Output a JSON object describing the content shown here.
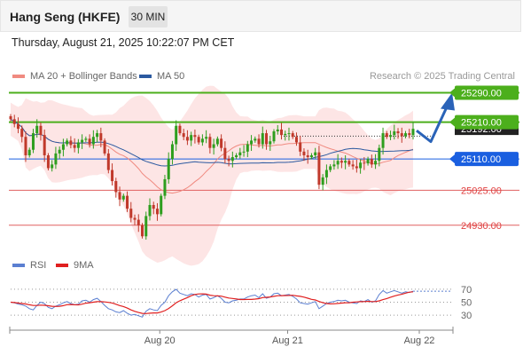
{
  "header": {
    "title": "Hang Seng (HKFE)",
    "timeframe": "30 MIN",
    "datetime": "Thursday, August 21, 2025 10:22:07 PM CET"
  },
  "legend": {
    "items": [
      {
        "label": "MA 20 + Bollinger Bands",
        "color": "#f08a80"
      },
      {
        "label": "MA 50",
        "color": "#2c5aa0"
      }
    ],
    "copyright": "Research © 2025 Trading Central"
  },
  "rsi_legend": {
    "items": [
      {
        "label": "RSI",
        "color": "#5b7fd1"
      },
      {
        "label": "9MA",
        "color": "#e02020"
      }
    ]
  },
  "chart_data": {
    "type": "candlestick",
    "price_range": [
      24850,
      25320
    ],
    "levels": [
      {
        "value": 25290,
        "label": "25290.00",
        "color": "#4caf1c",
        "kind": "resistance"
      },
      {
        "value": 25210,
        "label": "25210.00",
        "color": "#4caf1c",
        "kind": "resistance"
      },
      {
        "value": 25110,
        "label": "25110.00",
        "color": "#1a5fe0",
        "kind": "pivot"
      },
      {
        "value": 25025,
        "label": "25025.00",
        "color": "#e06060",
        "kind": "support"
      },
      {
        "value": 24930,
        "label": "24930.00",
        "color": "#e06060",
        "kind": "support"
      }
    ],
    "current_price": {
      "label": "25192.00"
    },
    "x_ticks": [
      "Aug 20",
      "Aug 21",
      "Aug 22"
    ],
    "closes": [
      25218,
      25205,
      25192,
      25170,
      25120,
      25135,
      25180,
      25200,
      25175,
      25120,
      25085,
      25095,
      25125,
      25135,
      25150,
      25160,
      25148,
      25140,
      25155,
      25162,
      25165,
      25150,
      25170,
      25180,
      25160,
      25125,
      25080,
      25050,
      25020,
      25000,
      25010,
      24975,
      24950,
      24945,
      24930,
      24900,
      24955,
      24985,
      24975,
      24960,
      25010,
      25055,
      25110,
      25150,
      25200,
      25180,
      25170,
      25160,
      25175,
      25170,
      25155,
      25165,
      25170,
      25140,
      25150,
      25165,
      25140,
      25110,
      25105,
      25115,
      25120,
      25128,
      25130,
      25150,
      25160,
      25165,
      25150,
      25180,
      25150,
      25158,
      25185,
      25190,
      25175,
      25178,
      25180,
      25170,
      25155,
      25130,
      25120,
      25115,
      25120,
      25128,
      25040,
      25060,
      25080,
      25090,
      25095,
      25105,
      25100,
      25105,
      25095,
      25090,
      25085,
      25100,
      25098,
      25110,
      25095,
      25105,
      25140,
      25180,
      25170,
      25175,
      25185,
      25180,
      25172,
      25180,
      25175,
      25192
    ],
    "ma_label": "MA 20",
    "rsi": {
      "ticks": [
        70,
        50,
        30
      ],
      "range": [
        15,
        85
      ],
      "values": [
        50,
        49,
        47,
        46,
        44,
        40,
        38,
        45,
        50,
        48,
        42,
        40,
        44,
        46,
        49,
        51,
        48,
        46,
        47,
        52,
        53,
        50,
        54,
        56,
        51,
        45,
        40,
        38,
        35,
        34,
        37,
        33,
        30,
        31,
        29,
        27,
        36,
        40,
        38,
        37,
        45,
        50,
        60,
        66,
        70,
        64,
        62,
        60,
        63,
        62,
        58,
        61,
        62,
        55,
        57,
        60,
        56,
        50,
        49,
        52,
        53,
        55,
        55,
        58,
        60,
        61,
        57,
        63,
        56,
        58,
        63,
        64,
        60,
        61,
        62,
        59,
        55,
        49,
        48,
        47,
        49,
        51,
        40,
        44,
        48,
        50,
        51,
        53,
        52,
        53,
        50,
        49,
        48,
        52,
        51,
        54,
        50,
        52,
        62,
        68,
        64,
        66,
        68,
        66,
        64,
        66,
        65,
        67
      ]
    }
  }
}
